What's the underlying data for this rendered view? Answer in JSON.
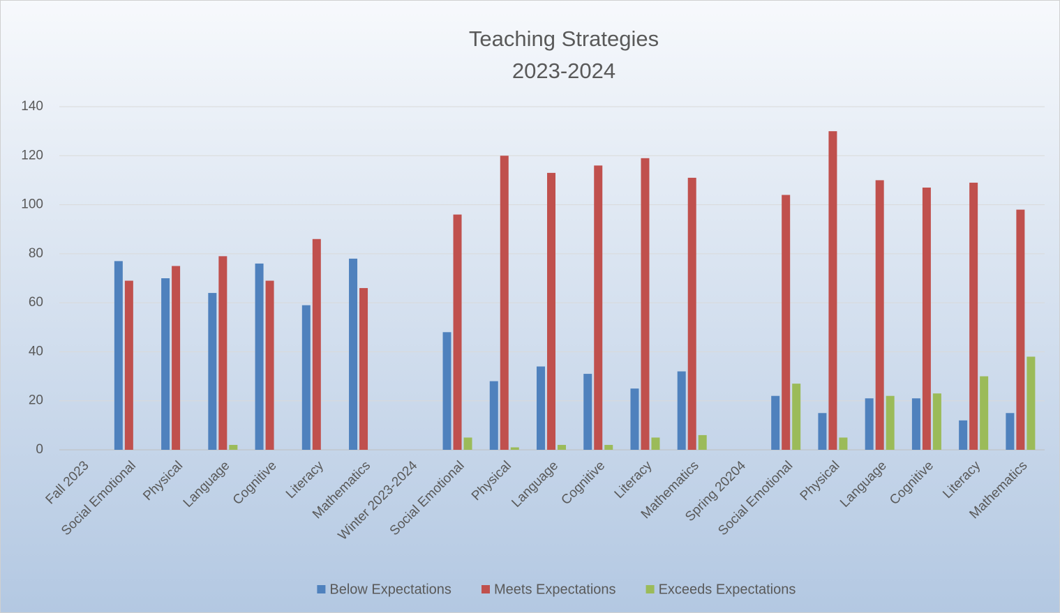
{
  "chart_data": {
    "type": "bar",
    "title": "Teaching Strategies",
    "subtitle": "2023-2024",
    "categories": [
      "Fall 2023",
      "Social Emotional",
      "Physical",
      "Language",
      "Cognitive",
      "Literacy",
      "Mathematics",
      "Winter 2023-2024",
      "Social Emotional",
      "Physical",
      "Language",
      "Cognitive",
      "Literacy",
      "Mathematics",
      "Spring 20204",
      "Social Emotional",
      "Physical",
      "Language",
      "Cognitive",
      "Literacy",
      "Mathematics"
    ],
    "series": [
      {
        "name": "Below Expectations",
        "color": "#4f81bd",
        "values": [
          null,
          77,
          70,
          64,
          76,
          59,
          78,
          null,
          48,
          28,
          34,
          31,
          25,
          32,
          null,
          22,
          15,
          21,
          21,
          12,
          15
        ]
      },
      {
        "name": "Meets Expectations",
        "color": "#c0504d",
        "values": [
          null,
          69,
          75,
          79,
          69,
          86,
          66,
          null,
          96,
          120,
          113,
          116,
          119,
          111,
          null,
          104,
          130,
          110,
          107,
          109,
          98
        ]
      },
      {
        "name": "Exceeds Expectations",
        "color": "#9bbb59",
        "values": [
          null,
          0,
          0,
          2,
          0,
          0,
          0,
          null,
          5,
          1,
          2,
          2,
          5,
          6,
          null,
          27,
          5,
          22,
          23,
          30,
          38
        ]
      }
    ],
    "ylim": [
      0,
      140
    ],
    "yticks": [
      0,
      20,
      40,
      60,
      80,
      100,
      120,
      140
    ],
    "grid": true,
    "legend": "bottom"
  }
}
